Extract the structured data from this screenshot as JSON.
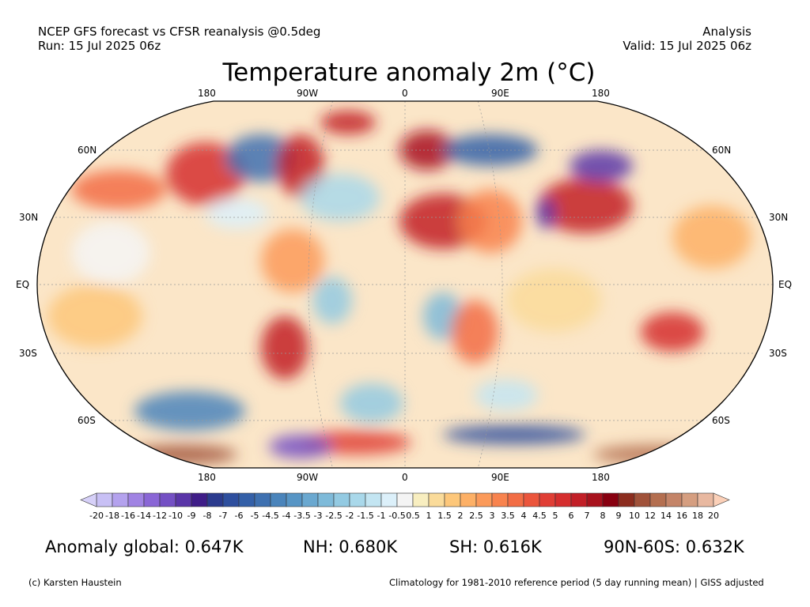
{
  "header": {
    "left_line1": "NCEP GFS forecast vs CFSR reanalysis @0.5deg",
    "left_line2": "Run: 15 Jul 2025 06z",
    "right_line1": "Analysis",
    "right_line2": "Valid: 15 Jul 2025 06z"
  },
  "title": "Temperature anomaly 2m (°C)",
  "map": {
    "projection": "Robinson",
    "lon_labels_top": [
      "180",
      "90W",
      "0",
      "90E",
      "180"
    ],
    "lon_labels_bottom": [
      "180",
      "90W",
      "0",
      "90E",
      "180"
    ],
    "lat_labels": [
      "60N",
      "30N",
      "EQ",
      "30S",
      "60S"
    ]
  },
  "colorbar": {
    "labels": [
      "-20",
      "-18",
      "-16",
      "-14",
      "-12",
      "-10",
      "-9",
      "-8",
      "-7",
      "-6",
      "-5",
      "-4.5",
      "-4",
      "-3.5",
      "-3",
      "-2.5",
      "-2",
      "-1.5",
      "-1",
      "-0.5",
      "0.5",
      "1",
      "1.5",
      "2",
      "2.5",
      "3",
      "3.5",
      "4",
      "4.5",
      "5",
      "6",
      "7",
      "8",
      "9",
      "10",
      "12",
      "14",
      "16",
      "18",
      "20"
    ],
    "colors": [
      "#c8c0f5",
      "#b4a2ee",
      "#a083e3",
      "#8a66d6",
      "#7450c4",
      "#5a35a8",
      "#3f1d88",
      "#2b3b8e",
      "#2e4f9e",
      "#3460a8",
      "#3e70b0",
      "#4a84bb",
      "#5795c5",
      "#6aa8d0",
      "#7ebad9",
      "#93cae2",
      "#a9d8ea",
      "#c3e5f2",
      "#dcf0fa",
      "#f4f4f4",
      "#f8eec0",
      "#fadb9a",
      "#fdc77a",
      "#fdb066",
      "#fb9a5a",
      "#f8834e",
      "#f26d45",
      "#eb553c",
      "#e03e35",
      "#d52e2e",
      "#c21f27",
      "#a8121d",
      "#880010",
      "#8c2d1f",
      "#a0523a",
      "#b46f50",
      "#c48468",
      "#d59e80",
      "#e8b8a0"
    ],
    "under_color": "#d6d0f8",
    "over_color": "#fbd0b8"
  },
  "stats": {
    "global": "Anomaly global: 0.647K",
    "nh": "NH: 0.680K",
    "sh": "SH: 0.616K",
    "band": "90N-60S: 0.632K"
  },
  "footer": {
    "credit": "(c) Karsten Haustein",
    "note": "Climatology for 1981-2010 reference period (5 day running mean) | GISS adjusted"
  }
}
